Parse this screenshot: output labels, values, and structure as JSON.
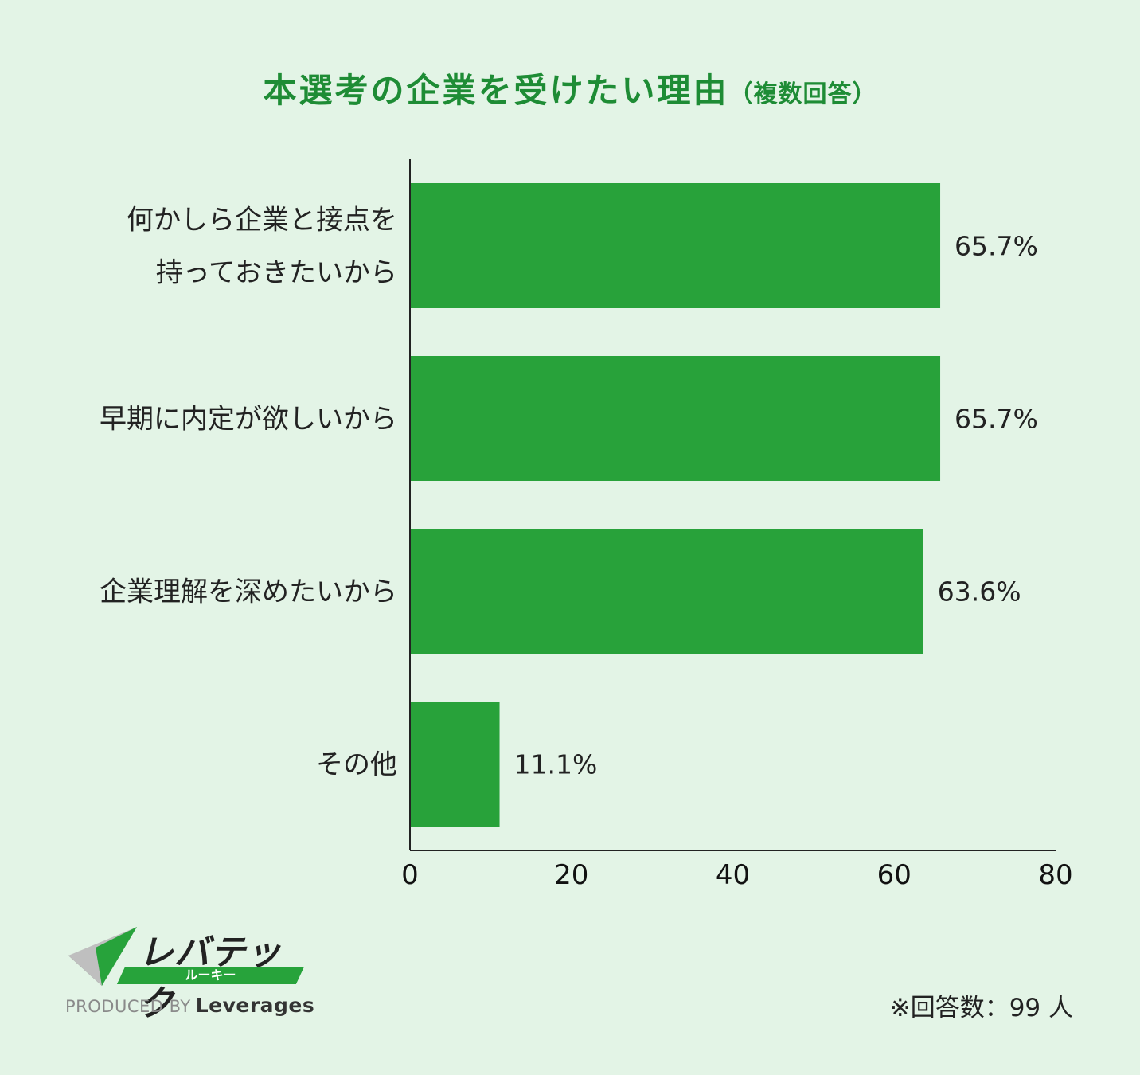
{
  "title": {
    "main": "本選考の企業を受けたい理由",
    "sub": "（複数回答）"
  },
  "chart_data": {
    "type": "bar",
    "orientation": "horizontal",
    "categories": [
      [
        "何かしら企業と接点を",
        "持っておきたいから"
      ],
      [
        "早期に内定が欲しいから"
      ],
      [
        "企業理解を深めたいから"
      ],
      [
        "その他"
      ]
    ],
    "values": [
      65.7,
      65.7,
      63.6,
      11.1
    ],
    "value_labels": [
      "65.7%",
      "65.7%",
      "63.6%",
      "11.1%"
    ],
    "xlim": [
      0,
      80
    ],
    "x_ticks": [
      "0",
      "20",
      "40",
      "60",
      "80"
    ],
    "bar_color": "#28a23a",
    "grid": false
  },
  "logo": {
    "name": "レバテック",
    "sub": "ルーキー",
    "produced_by": "PRODUCED BY",
    "company": "Leverages"
  },
  "note": "※回答数：99 人",
  "colors": {
    "background": "#e3f4e6",
    "title": "#1e8c35",
    "bar": "#28a23a"
  }
}
